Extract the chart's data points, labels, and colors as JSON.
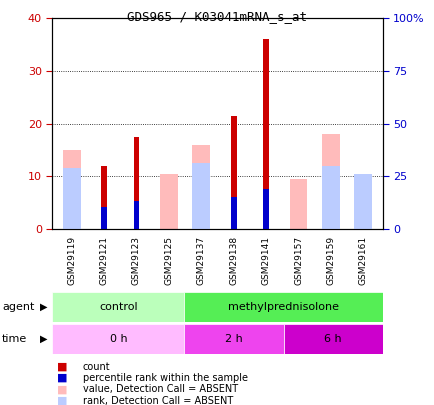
{
  "title": "GDS965 / K03041mRNA_s_at",
  "samples": [
    "GSM29119",
    "GSM29121",
    "GSM29123",
    "GSM29125",
    "GSM29137",
    "GSM29138",
    "GSM29141",
    "GSM29157",
    "GSM29159",
    "GSM29161"
  ],
  "count_values": [
    0,
    12,
    17.5,
    0,
    0,
    21.5,
    36,
    0,
    0,
    0
  ],
  "percentile_values": [
    0,
    10.3,
    13.3,
    0,
    0,
    15.2,
    18.8,
    0,
    0,
    0
  ],
  "absent_value_values": [
    15,
    0,
    0,
    10.5,
    16,
    0,
    0,
    9.5,
    18,
    10.5
  ],
  "absent_rank_values": [
    11.5,
    0,
    0,
    0,
    12.5,
    0,
    0,
    0,
    12,
    10.5
  ],
  "count_color": "#cc0000",
  "percentile_color": "#0000cc",
  "absent_value_color": "#ffbbbb",
  "absent_rank_color": "#bbccff",
  "ylim_left": [
    0,
    40
  ],
  "ylim_right": [
    0,
    100
  ],
  "yticks_left": [
    0,
    10,
    20,
    30,
    40
  ],
  "yticks_right": [
    0,
    25,
    50,
    75,
    100
  ],
  "ytick_labels_right": [
    "0",
    "25",
    "50",
    "75",
    "100%"
  ],
  "agent_groups": [
    {
      "label": "control",
      "start": 0,
      "end": 4,
      "color": "#bbffbb"
    },
    {
      "label": "methylprednisolone",
      "start": 4,
      "end": 10,
      "color": "#55ee55"
    }
  ],
  "time_groups": [
    {
      "label": "0 h",
      "start": 0,
      "end": 4,
      "color": "#ffbbff"
    },
    {
      "label": "2 h",
      "start": 4,
      "end": 7,
      "color": "#ee44ee"
    },
    {
      "label": "6 h",
      "start": 7,
      "end": 10,
      "color": "#cc00cc"
    }
  ],
  "legend_items": [
    {
      "label": "count",
      "color": "#cc0000"
    },
    {
      "label": "percentile rank within the sample",
      "color": "#0000cc"
    },
    {
      "label": "value, Detection Call = ABSENT",
      "color": "#ffbbbb"
    },
    {
      "label": "rank, Detection Call = ABSENT",
      "color": "#bbccff"
    }
  ],
  "background_color": "#ffffff",
  "left_tick_color": "#cc0000",
  "right_tick_color": "#0000cc",
  "xtick_bg_color": "#cccccc",
  "plot_area_bg": "#ffffff"
}
